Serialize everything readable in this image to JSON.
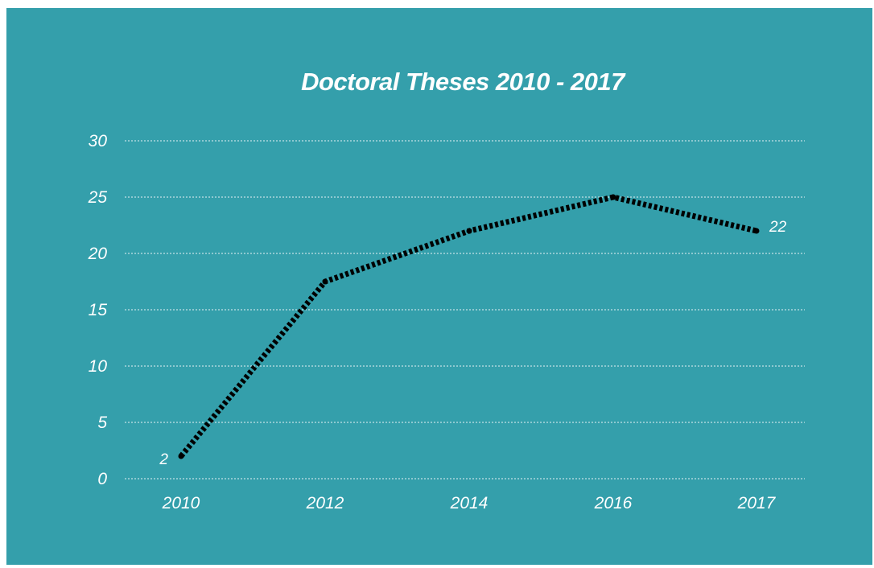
{
  "colors": {
    "background": "#349fab",
    "text": "#ffffff",
    "grid": "#e6f2f4",
    "line": "#000000"
  },
  "chart_data": {
    "type": "line",
    "title": "Doctoral Theses 2010 - 2017",
    "xlabel": "",
    "ylabel": "",
    "categories": [
      "2010",
      "2012",
      "2014",
      "2016",
      "2017"
    ],
    "series": [
      {
        "values": [
          2,
          17.5,
          22,
          25,
          22
        ]
      }
    ],
    "ylim": [
      0,
      30
    ],
    "yticks": [
      "0",
      "5",
      "10",
      "15",
      "20",
      "25",
      "30"
    ],
    "data_labels": [
      {
        "index": 0,
        "text": "2"
      },
      {
        "index": 4,
        "text": "22"
      }
    ],
    "grid": true,
    "grid_style": "dotted",
    "line_style": "dotted",
    "legend": "none"
  }
}
